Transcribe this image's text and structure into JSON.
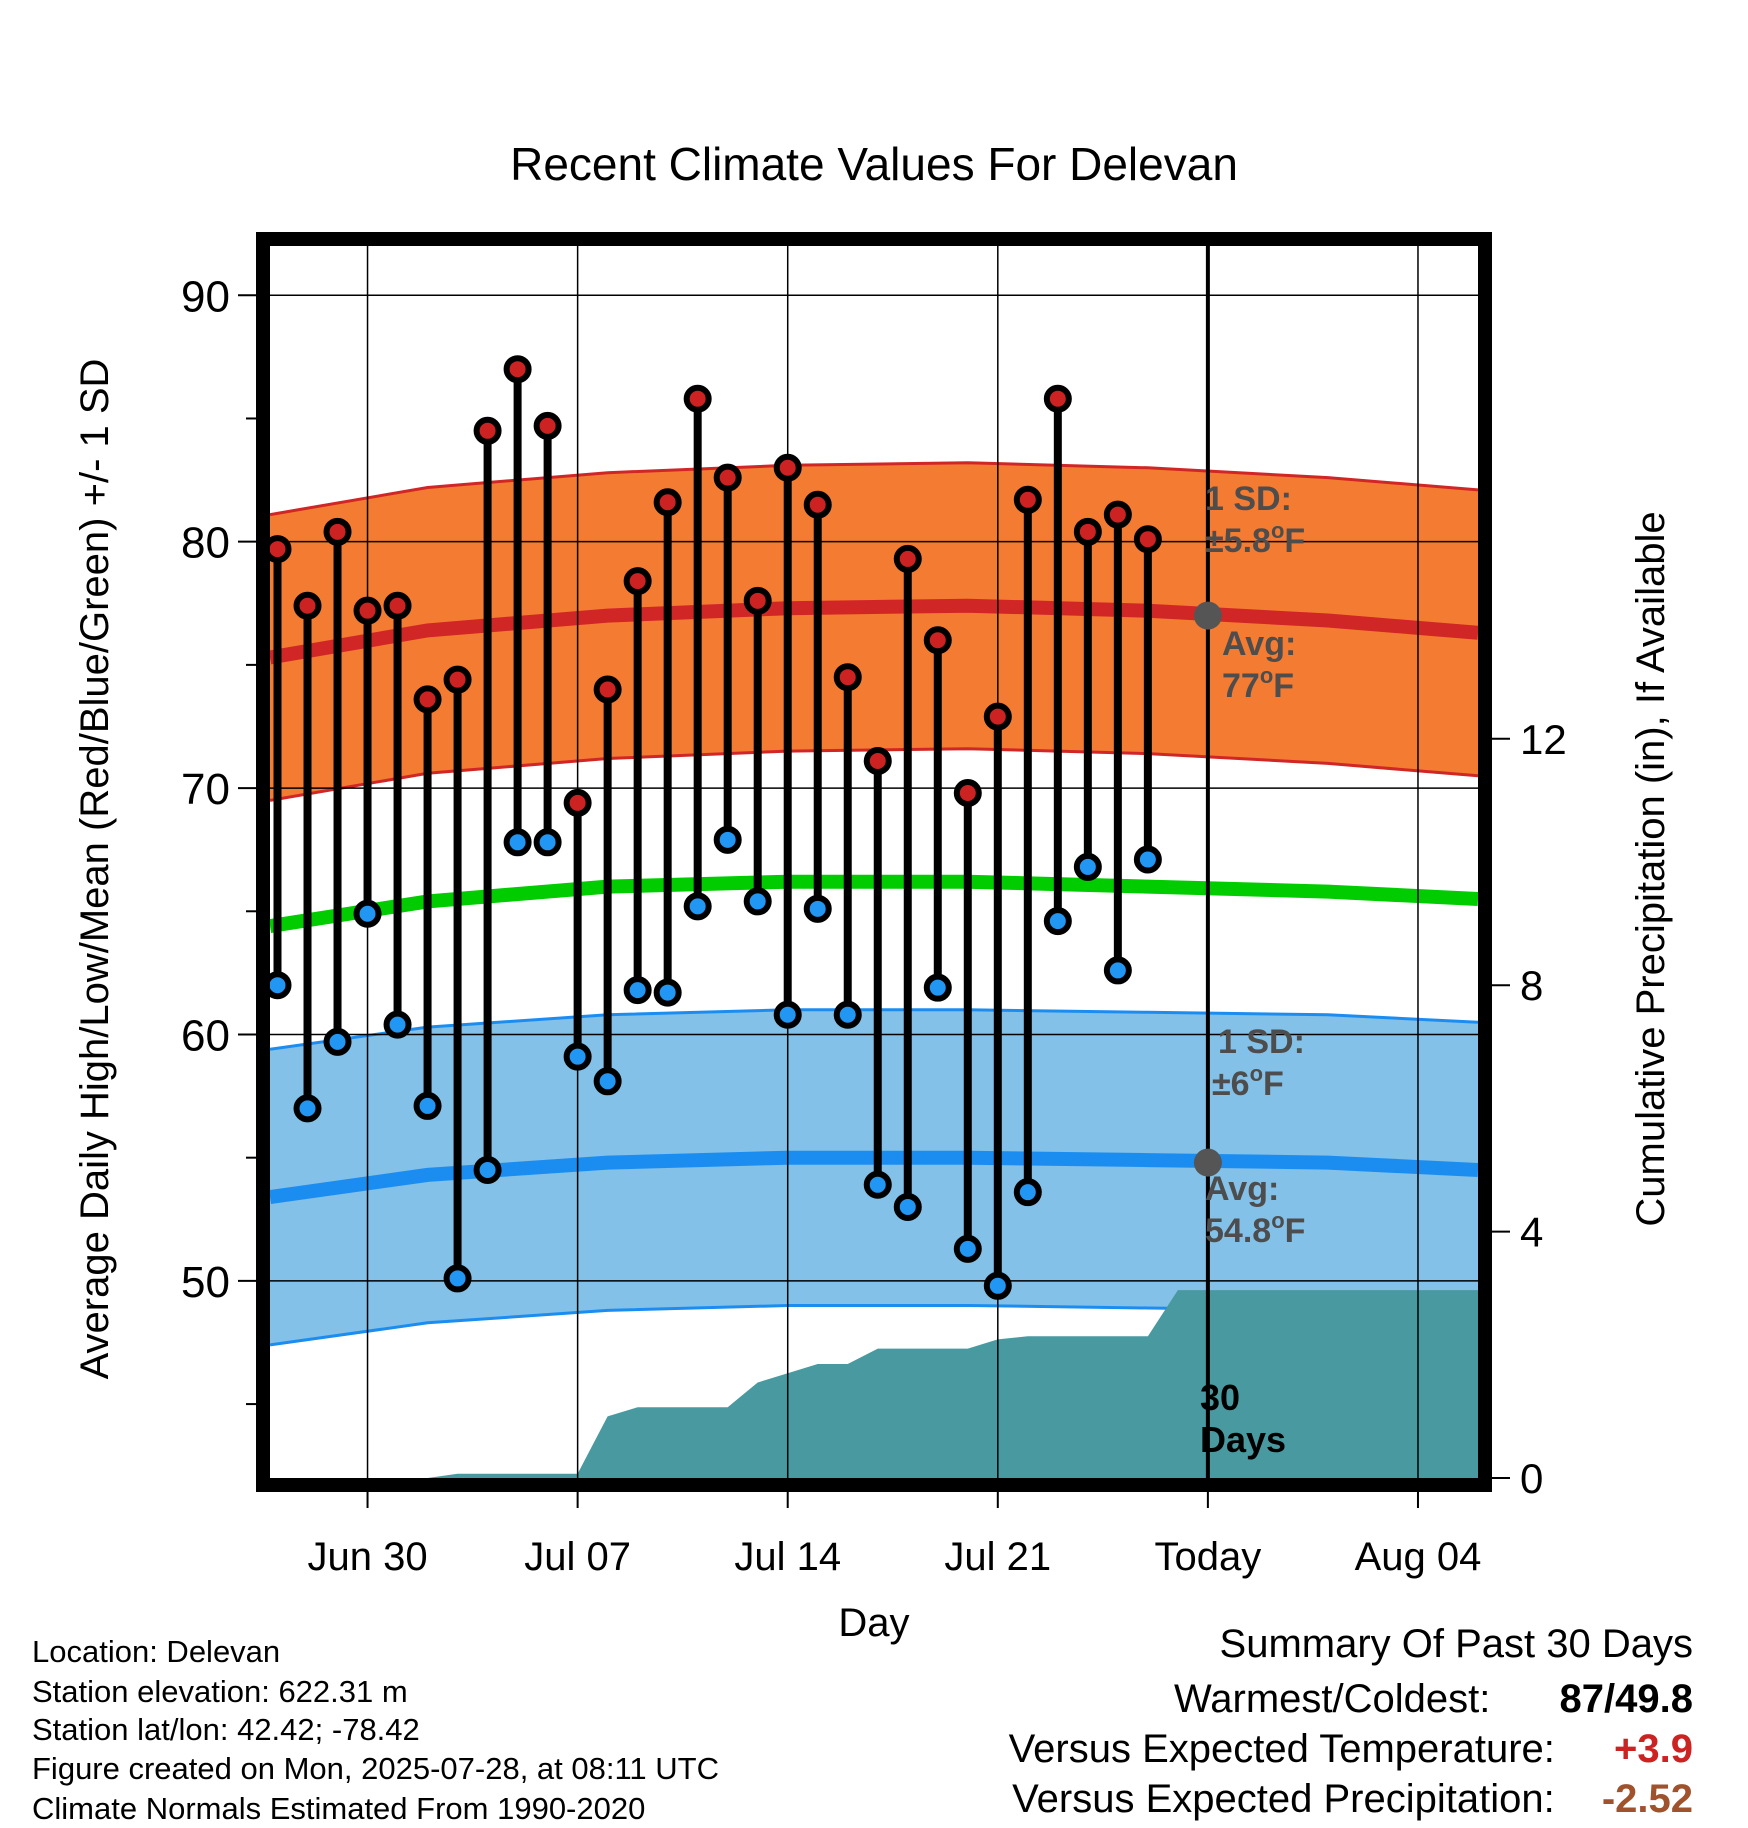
{
  "chart_data": {
    "type": "line",
    "title": "Recent Climate Values For Delevan",
    "xlabel": "Day",
    "ylabel": "Average Daily High/Low/Mean (Red/Blue/Green) +/- 1 SD",
    "y2label": "Cumulative Precipitation (in), If Available",
    "ylim": [
      42,
      92
    ],
    "y_ticks": [
      50,
      60,
      70,
      80,
      90
    ],
    "y2lim": [
      0,
      20
    ],
    "y2_ticks": [
      0,
      4,
      8,
      12
    ],
    "x_tick_labels": [
      "Jun 30",
      "Jul 07",
      "Jul 14",
      "Jul 21",
      "Today",
      "Aug 04"
    ],
    "x_tick_days": [
      4,
      11,
      18,
      25,
      32,
      39
    ],
    "x_range": [
      0.75,
      41
    ],
    "today_day": 32,
    "grid": true,
    "days": [
      1,
      2,
      3,
      4,
      5,
      6,
      7,
      8,
      9,
      10,
      11,
      12,
      13,
      14,
      15,
      16,
      17,
      18,
      19,
      20,
      21,
      22,
      23,
      24,
      25,
      26,
      27,
      28,
      29,
      30,
      31
    ],
    "series": [
      {
        "name": "High",
        "color": "#cc2222",
        "values": [
          79.7,
          77.4,
          80.4,
          77.2,
          77.4,
          73.6,
          74.4,
          84.5,
          87.0,
          84.7,
          69.4,
          74.0,
          78.4,
          81.6,
          85.8,
          82.6,
          77.6,
          83.0,
          81.5,
          74.5,
          71.1,
          79.3,
          76.0,
          69.8,
          72.9,
          81.7,
          85.8,
          80.4,
          81.1,
          80.1,
          null
        ]
      },
      {
        "name": "Low",
        "color": "#2196f3",
        "values": [
          62.0,
          57.0,
          59.7,
          64.9,
          60.4,
          57.1,
          50.1,
          54.5,
          67.8,
          67.8,
          59.1,
          58.1,
          61.8,
          61.7,
          65.2,
          67.9,
          65.4,
          60.8,
          65.1,
          60.8,
          53.9,
          53.0,
          61.9,
          51.3,
          49.8,
          53.6,
          64.6,
          66.8,
          62.6,
          67.1,
          null
        ]
      }
    ],
    "normals": {
      "days": [
        0.75,
        6,
        12,
        18,
        24,
        30,
        36,
        41
      ],
      "high_avg": [
        75.3,
        76.4,
        77.0,
        77.3,
        77.4,
        77.2,
        76.8,
        76.3
      ],
      "low_avg": [
        53.4,
        54.3,
        54.8,
        55.0,
        55.0,
        54.9,
        54.8,
        54.5
      ],
      "mean_avg": [
        64.4,
        65.4,
        66.0,
        66.2,
        66.2,
        66.0,
        65.8,
        65.5
      ],
      "high_sd": 5.8,
      "low_sd": 6.0
    },
    "precip": {
      "days": [
        0.75,
        6,
        7,
        8,
        9,
        10,
        11,
        12,
        13,
        14,
        15,
        16,
        17,
        18,
        19,
        20,
        21,
        22,
        23,
        24,
        25,
        26,
        27,
        28,
        29,
        30,
        31,
        41
      ],
      "values": [
        0,
        0,
        0.07,
        0.07,
        0.07,
        0.07,
        0.07,
        1.0,
        1.15,
        1.15,
        1.15,
        1.15,
        1.55,
        1.7,
        1.85,
        1.85,
        2.1,
        2.1,
        2.1,
        2.1,
        2.25,
        2.3,
        2.3,
        2.3,
        2.3,
        2.3,
        3.05,
        3.05
      ]
    },
    "colors": {
      "high_band": "#f47b32",
      "high_avg_line": "#d12626",
      "high_band_edge": "#d12626",
      "low_band": "#83c1e8",
      "low_avg_line": "#1c8df0",
      "low_band_edge": "#1c8df0",
      "mean_line": "#00cc00",
      "precip_fill": "#4899a0",
      "annotation_text": "#4d4d4d",
      "today_marker": "#555555"
    },
    "annotations": {
      "high_sd_label": "1 SD:",
      "high_sd_value": "±5.8",
      "high_avg_label": "Avg:",
      "high_avg_value": "77",
      "low_sd_label": "1 SD:",
      "low_sd_value": "±6",
      "low_avg_label": "Avg:",
      "low_avg_value": "54.8",
      "unit_degree": "o",
      "unit_f": "F",
      "precip_label_1": "30",
      "precip_label_2": "Days"
    }
  },
  "info": {
    "location": "Location: Delevan",
    "elevation": "Station elevation: 622.31 m",
    "latlon": "Station lat/lon: 42.42; -78.42",
    "created": "Figure created on Mon, 2025-07-28, at 08:11 UTC",
    "normals": "Climate Normals Estimated From 1990-2020"
  },
  "summary": {
    "title": "Summary Of Past 30 Days",
    "warmest_label": "Warmest/Coldest:",
    "warmest_value": "87",
    "coldest_value": "49.8",
    "temp_label": "Versus Expected Temperature:",
    "temp_value": "+3.9",
    "temp_color": "#cc2222",
    "precip_label": "Versus Expected Precipitation:",
    "precip_value": "-2.52",
    "precip_color": "#a0522d"
  }
}
